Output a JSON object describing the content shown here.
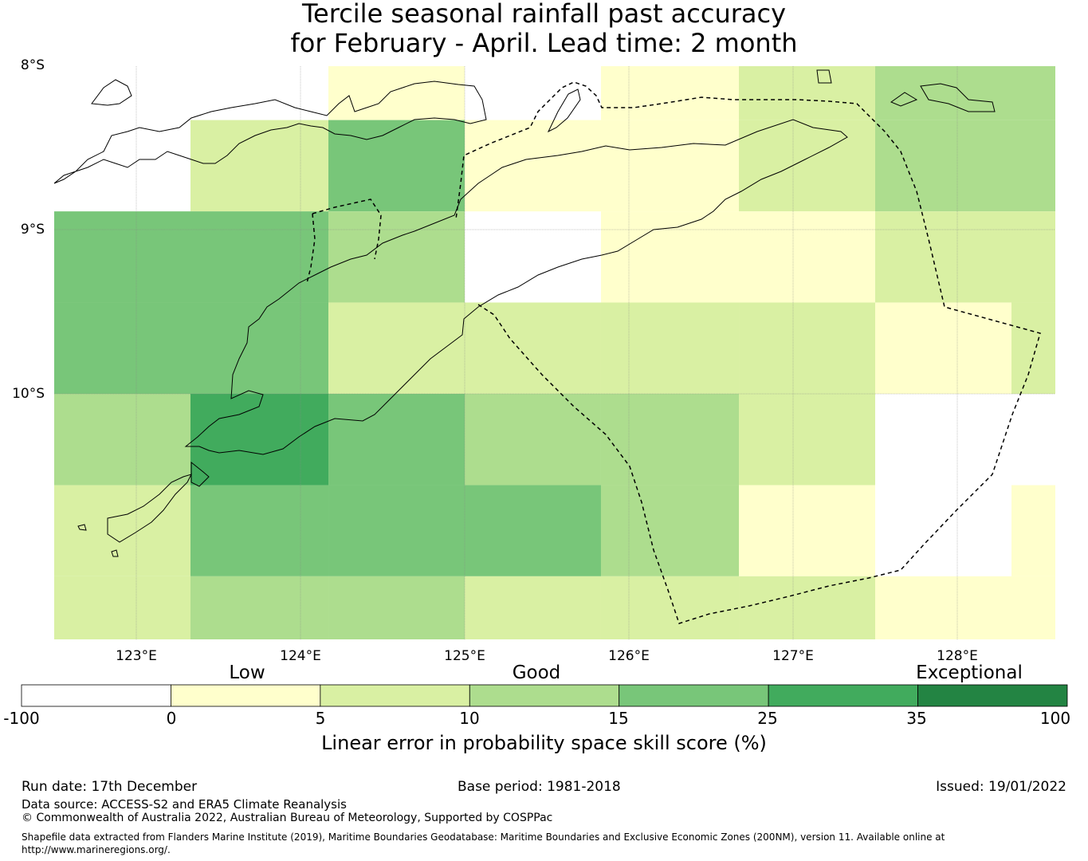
{
  "title": {
    "line1": "Tercile seasonal rainfall past accuracy",
    "line2": "for February - April. Lead time: 2 month"
  },
  "map": {
    "lat_labels": [
      "8°S",
      "9°S",
      "10°S"
    ],
    "lon_labels": [
      "123°E",
      "124°E",
      "125°E",
      "126°E",
      "127°E",
      "128°E"
    ],
    "grid_extent": {
      "lon_min": 122.5,
      "lon_max": 128.6,
      "lat_top": -7.97,
      "lat_bottom": -11.47
    },
    "cell_size_deg": {
      "lon": 0.833,
      "lat": 0.556
    },
    "cell_rows": [
      {
        "lat_top": -8.0,
        "lat_bottom": -8.333,
        "cells": [
          [
            124.17,
            125.0,
            "low"
          ],
          [
            125.83,
            126.67,
            "low"
          ],
          [
            126.67,
            127.5,
            "fair"
          ],
          [
            127.5,
            128.6,
            "good"
          ]
        ]
      },
      {
        "lat_top": -8.333,
        "lat_bottom": -8.889,
        "cells": [
          [
            123.33,
            124.17,
            "fair"
          ],
          [
            124.17,
            125.0,
            "verygood"
          ],
          [
            125.0,
            125.83,
            "low"
          ],
          [
            125.83,
            126.67,
            "low"
          ],
          [
            126.67,
            127.5,
            "fair"
          ],
          [
            127.5,
            128.6,
            "good"
          ]
        ]
      },
      {
        "lat_top": -8.889,
        "lat_bottom": -9.444,
        "cells": [
          [
            122.5,
            124.17,
            "verygood"
          ],
          [
            124.17,
            125.0,
            "good"
          ],
          [
            125.83,
            126.67,
            "low"
          ],
          [
            126.67,
            127.5,
            "low"
          ],
          [
            127.5,
            128.6,
            "fair"
          ]
        ]
      },
      {
        "lat_top": -9.444,
        "lat_bottom": -10.0,
        "cells": [
          [
            122.5,
            124.17,
            "verygood"
          ],
          [
            124.17,
            125.0,
            "fair"
          ],
          [
            125.0,
            125.83,
            "fair"
          ],
          [
            125.83,
            126.67,
            "fair"
          ],
          [
            126.67,
            127.5,
            "fair"
          ],
          [
            127.5,
            128.33,
            "low"
          ],
          [
            128.33,
            128.6,
            "fair"
          ]
        ]
      },
      {
        "lat_top": -10.0,
        "lat_bottom": -10.556,
        "cells": [
          [
            122.5,
            123.33,
            "good"
          ],
          [
            123.33,
            124.17,
            "excellent"
          ],
          [
            124.17,
            125.0,
            "verygood"
          ],
          [
            125.0,
            125.83,
            "good"
          ],
          [
            125.83,
            126.67,
            "good"
          ],
          [
            126.67,
            127.5,
            "fair"
          ]
        ]
      },
      {
        "lat_top": -10.556,
        "lat_bottom": -11.111,
        "cells": [
          [
            122.5,
            123.33,
            "fair"
          ],
          [
            123.33,
            124.17,
            "verygood"
          ],
          [
            124.17,
            125.0,
            "verygood"
          ],
          [
            125.0,
            125.83,
            "verygood"
          ],
          [
            125.83,
            126.67,
            "good"
          ],
          [
            126.67,
            127.5,
            "low"
          ],
          [
            128.33,
            128.6,
            "low"
          ]
        ]
      },
      {
        "lat_top": -11.111,
        "lat_bottom": -11.5,
        "cells": [
          [
            122.5,
            123.33,
            "fair"
          ],
          [
            123.33,
            124.17,
            "good"
          ],
          [
            124.17,
            125.0,
            "good"
          ],
          [
            125.0,
            125.83,
            "fair"
          ],
          [
            125.83,
            126.67,
            "fair"
          ],
          [
            126.67,
            127.5,
            "fair"
          ],
          [
            127.5,
            128.6,
            "low"
          ]
        ]
      }
    ],
    "class_colors": {
      "none": "#ffffff",
      "low": "#ffffcc",
      "fair": "#d9f0a3",
      "good": "#addd8e",
      "verygood": "#78c679",
      "excellent": "#41ab5d",
      "exceptional": "#238443"
    }
  },
  "colorbar": {
    "category_labels": [
      "Low",
      "Good",
      "Exceptional"
    ],
    "ticks": [
      "-100",
      "0",
      "5",
      "10",
      "15",
      "25",
      "35",
      "100"
    ],
    "colors": [
      "#ffffff",
      "#ffffcc",
      "#d9f0a3",
      "#addd8e",
      "#78c679",
      "#41ab5d",
      "#238443"
    ],
    "label": "Linear error in probability space skill score (%)"
  },
  "footer": {
    "run_date": "Run date: 17th December",
    "base_period": "Base period: 1981-2018",
    "issued": "Issued: 19/01/2022",
    "data_source": "Data source: ACCESS-S2 and ERA5 Climate Reanalysis",
    "copyright": "© Commonwealth of Australia 2022, Australian Bureau of Meteorology, Supported by COSPPac",
    "shapefile_note": "Shapefile data extracted from Flanders Marine Institute (2019), Maritime Boundaries Geodatabase: Maritime Boundaries and Exclusive Economic Zones (200NM), version 11. Available online at http://www.marineregions.org/."
  }
}
